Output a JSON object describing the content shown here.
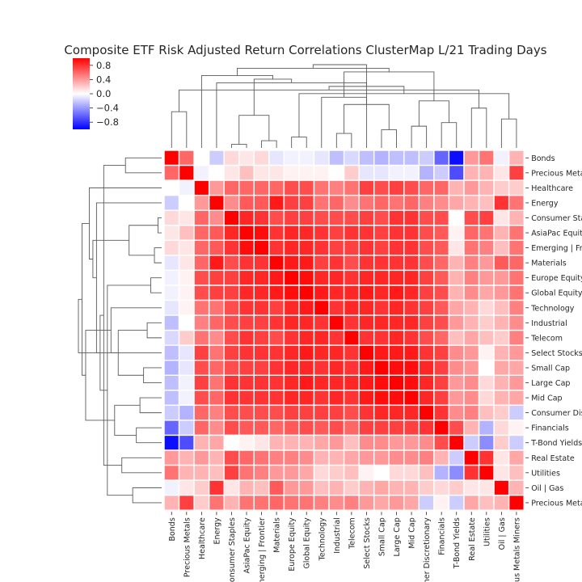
{
  "chart_data": {
    "type": "heatmap",
    "title": "Composite ETF Risk Adjusted Return Correlations ClusterMap L/21 Trading Days",
    "labels": [
      "Bonds",
      "Precious Metals",
      "Healthcare",
      "Energy",
      "Consumer Staples",
      "AsiaPac Equity",
      "Emerging | Frontier",
      "Materials",
      "Europe Equity",
      "Global Equity",
      "Technology",
      "Industrial",
      "Telecom",
      "Select Stocks",
      "Small Cap",
      "Large Cap",
      "Mid Cap",
      "Consumer Discretionary",
      "Financials",
      "T-Bond Yields",
      "Real Estate",
      "Utilities",
      "Oil | Gas",
      "Precious Metals Miners"
    ],
    "colorbar": {
      "min": -1.0,
      "max": 1.0,
      "ticks": [
        "0.8",
        "0.4",
        "0.0",
        "−0.4",
        "−0.8"
      ],
      "tick_values": [
        0.8,
        0.4,
        0.0,
        -0.4,
        -0.8
      ]
    },
    "colors": {
      "negative": "#0000ff",
      "neutral": "#ffffff",
      "positive": "#ff0000"
    },
    "values": [
      [
        1.0,
        0.6,
        0.0,
        -0.2,
        0.15,
        0.1,
        0.15,
        -0.1,
        -0.05,
        -0.05,
        -0.1,
        -0.25,
        -0.15,
        -0.25,
        -0.3,
        -0.25,
        -0.25,
        -0.2,
        -0.6,
        -0.95,
        0.4,
        0.55,
        -0.05,
        0.3
      ],
      [
        0.6,
        1.0,
        -0.05,
        0.0,
        0.1,
        0.25,
        0.1,
        0.1,
        0.05,
        0.05,
        0.05,
        0.0,
        0.2,
        -0.1,
        -0.1,
        -0.05,
        -0.05,
        -0.3,
        -0.2,
        -0.7,
        0.3,
        0.3,
        0.1,
        0.75
      ],
      [
        0.0,
        -0.05,
        1.0,
        0.4,
        0.6,
        0.6,
        0.6,
        0.6,
        0.7,
        0.7,
        0.55,
        0.5,
        0.55,
        0.75,
        0.7,
        0.75,
        0.7,
        0.6,
        0.6,
        0.3,
        0.4,
        0.3,
        0.2,
        0.2
      ],
      [
        -0.2,
        0.0,
        0.4,
        1.0,
        0.45,
        0.65,
        0.65,
        0.9,
        0.75,
        0.75,
        0.55,
        0.6,
        0.45,
        0.55,
        0.6,
        0.55,
        0.6,
        0.5,
        0.45,
        0.35,
        0.3,
        0.25,
        0.8,
        0.55
      ],
      [
        0.15,
        0.1,
        0.6,
        0.45,
        1.0,
        0.85,
        0.8,
        0.7,
        0.75,
        0.75,
        0.7,
        0.7,
        0.7,
        0.75,
        0.7,
        0.8,
        0.8,
        0.7,
        0.7,
        0.0,
        0.7,
        0.75,
        0.1,
        0.3
      ],
      [
        0.1,
        0.25,
        0.6,
        0.65,
        0.85,
        1.0,
        0.95,
        0.8,
        0.85,
        0.85,
        0.8,
        0.75,
        0.8,
        0.8,
        0.75,
        0.8,
        0.8,
        0.7,
        0.65,
        0.05,
        0.6,
        0.55,
        0.3,
        0.55
      ],
      [
        0.15,
        0.1,
        0.6,
        0.65,
        0.8,
        0.95,
        1.0,
        0.8,
        0.85,
        0.85,
        0.8,
        0.75,
        0.75,
        0.8,
        0.75,
        0.8,
        0.8,
        0.7,
        0.65,
        0.1,
        0.55,
        0.5,
        0.25,
        0.55
      ],
      [
        -0.1,
        0.1,
        0.6,
        0.9,
        0.7,
        0.8,
        0.8,
        1.0,
        0.9,
        0.9,
        0.75,
        0.8,
        0.7,
        0.8,
        0.8,
        0.8,
        0.8,
        0.7,
        0.6,
        0.3,
        0.5,
        0.4,
        0.65,
        0.6
      ],
      [
        -0.05,
        0.05,
        0.7,
        0.75,
        0.75,
        0.85,
        0.85,
        0.9,
        1.0,
        0.95,
        0.85,
        0.85,
        0.8,
        0.85,
        0.85,
        0.85,
        0.85,
        0.75,
        0.65,
        0.3,
        0.5,
        0.4,
        0.4,
        0.55
      ],
      [
        -0.05,
        0.05,
        0.7,
        0.75,
        0.75,
        0.85,
        0.85,
        0.9,
        0.95,
        1.0,
        0.9,
        0.85,
        0.85,
        0.9,
        0.85,
        0.9,
        0.85,
        0.75,
        0.7,
        0.3,
        0.45,
        0.35,
        0.4,
        0.55
      ],
      [
        -0.1,
        0.05,
        0.55,
        0.55,
        0.7,
        0.8,
        0.8,
        0.75,
        0.85,
        0.9,
        1.0,
        0.8,
        0.85,
        0.85,
        0.8,
        0.85,
        0.8,
        0.75,
        0.65,
        0.35,
        0.3,
        0.15,
        0.25,
        0.5
      ],
      [
        -0.25,
        0.0,
        0.5,
        0.6,
        0.7,
        0.75,
        0.75,
        0.8,
        0.85,
        0.85,
        0.8,
        1.0,
        0.8,
        0.85,
        0.85,
        0.85,
        0.85,
        0.75,
        0.7,
        0.4,
        0.3,
        0.2,
        0.3,
        0.45
      ],
      [
        -0.15,
        0.2,
        0.55,
        0.45,
        0.7,
        0.8,
        0.75,
        0.7,
        0.8,
        0.85,
        0.85,
        0.8,
        1.0,
        0.8,
        0.8,
        0.85,
        0.8,
        0.7,
        0.6,
        0.25,
        0.35,
        0.25,
        0.2,
        0.5
      ],
      [
        -0.25,
        -0.1,
        0.75,
        0.55,
        0.75,
        0.8,
        0.8,
        0.8,
        0.85,
        0.9,
        0.85,
        0.85,
        0.8,
        1.0,
        0.9,
        0.9,
        0.9,
        0.8,
        0.75,
        0.45,
        0.4,
        0.05,
        0.3,
        0.4
      ],
      [
        -0.3,
        -0.1,
        0.7,
        0.6,
        0.7,
        0.75,
        0.75,
        0.8,
        0.85,
        0.85,
        0.8,
        0.85,
        0.8,
        0.9,
        1.0,
        0.95,
        0.95,
        0.85,
        0.75,
        0.45,
        0.4,
        0.0,
        0.35,
        0.35
      ],
      [
        -0.25,
        -0.05,
        0.75,
        0.55,
        0.8,
        0.8,
        0.8,
        0.8,
        0.85,
        0.9,
        0.85,
        0.85,
        0.85,
        0.9,
        0.95,
        1.0,
        0.95,
        0.85,
        0.75,
        0.4,
        0.45,
        0.15,
        0.3,
        0.4
      ],
      [
        -0.25,
        -0.05,
        0.7,
        0.6,
        0.8,
        0.8,
        0.8,
        0.8,
        0.85,
        0.85,
        0.8,
        0.85,
        0.8,
        0.9,
        0.95,
        0.95,
        1.0,
        0.85,
        0.75,
        0.4,
        0.45,
        0.15,
        0.3,
        0.35
      ],
      [
        -0.2,
        -0.3,
        0.6,
        0.5,
        0.7,
        0.7,
        0.7,
        0.7,
        0.75,
        0.75,
        0.75,
        0.75,
        0.7,
        0.8,
        0.85,
        0.85,
        0.85,
        1.0,
        0.8,
        0.45,
        0.5,
        0.25,
        0.2,
        -0.2
      ],
      [
        -0.6,
        -0.2,
        0.6,
        0.45,
        0.7,
        0.65,
        0.65,
        0.6,
        0.65,
        0.7,
        0.65,
        0.7,
        0.6,
        0.75,
        0.75,
        0.75,
        0.75,
        0.8,
        1.0,
        0.7,
        0.3,
        -0.3,
        0.15,
        0.05
      ],
      [
        -0.95,
        -0.7,
        0.3,
        0.35,
        0.0,
        0.05,
        0.1,
        0.3,
        0.3,
        0.3,
        0.35,
        0.4,
        0.25,
        0.45,
        0.45,
        0.4,
        0.4,
        0.45,
        0.7,
        1.0,
        -0.2,
        -0.45,
        0.2,
        -0.2
      ],
      [
        0.4,
        0.3,
        0.4,
        0.3,
        0.7,
        0.6,
        0.55,
        0.5,
        0.5,
        0.45,
        0.3,
        0.3,
        0.35,
        0.4,
        0.4,
        0.45,
        0.45,
        0.5,
        0.3,
        -0.2,
        1.0,
        0.8,
        0.1,
        0.35
      ],
      [
        0.55,
        0.3,
        0.3,
        0.25,
        0.75,
        0.55,
        0.5,
        0.4,
        0.4,
        0.35,
        0.15,
        0.2,
        0.25,
        0.05,
        0.0,
        0.15,
        0.15,
        0.25,
        -0.3,
        -0.45,
        0.8,
        1.0,
        0.1,
        0.25
      ],
      [
        -0.05,
        0.1,
        0.2,
        0.8,
        0.1,
        0.3,
        0.25,
        0.65,
        0.4,
        0.4,
        0.25,
        0.3,
        0.2,
        0.3,
        0.35,
        0.3,
        0.3,
        0.2,
        0.15,
        0.2,
        0.1,
        0.1,
        1.0,
        0.3
      ],
      [
        0.3,
        0.75,
        0.2,
        0.55,
        0.3,
        0.55,
        0.55,
        0.6,
        0.55,
        0.55,
        0.5,
        0.45,
        0.5,
        0.4,
        0.35,
        0.4,
        0.35,
        -0.2,
        0.05,
        -0.2,
        0.35,
        0.25,
        0.3,
        1.0
      ]
    ],
    "dendrogram_links": [
      [
        4,
        5,
        1
      ],
      [
        6,
        7,
        2
      ],
      [
        8,
        9,
        3
      ],
      [
        11,
        12,
        4
      ],
      [
        14,
        15,
        5
      ],
      [
        16,
        17,
        6
      ],
      [
        18,
        19,
        7
      ],
      [
        22,
        23,
        8
      ],
      [
        24,
        25,
        9
      ],
      [
        0,
        1,
        10
      ],
      [
        20,
        21,
        11
      ],
      [
        27,
        28,
        12
      ],
      [
        29,
        30,
        13
      ],
      [
        10,
        13,
        14
      ],
      [
        26,
        31,
        15
      ],
      [
        33,
        34,
        16
      ],
      [
        38,
        39,
        17
      ],
      [
        3,
        40,
        18
      ],
      [
        32,
        41,
        19
      ],
      [
        2,
        42,
        20
      ],
      [
        36,
        37,
        21
      ],
      [
        43,
        44,
        22
      ],
      [
        35,
        45,
        23
      ]
    ]
  }
}
